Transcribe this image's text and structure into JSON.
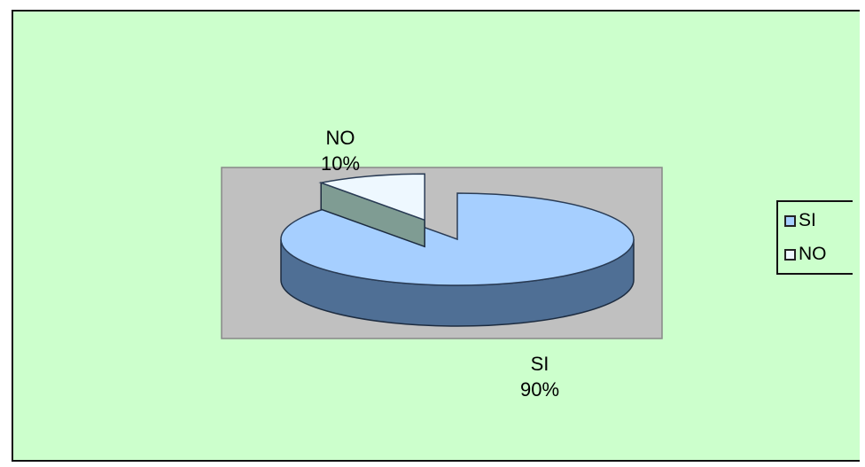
{
  "chart_data": {
    "type": "pie",
    "style": "3d-exploded",
    "categories": [
      "SI",
      "NO"
    ],
    "values": [
      90,
      10
    ],
    "data_labels": [
      {
        "name": "SI",
        "percent": "90%"
      },
      {
        "name": "NO",
        "percent": "10%"
      }
    ],
    "legend": {
      "position": "right",
      "entries": [
        "SI",
        "NO"
      ]
    },
    "colors": {
      "SI_top": "#a6cfff",
      "SI_side": "#4f6f95",
      "NO_top": "#eef8ff",
      "NO_side": "#7f9c93",
      "plot_area": "#c0c0c0",
      "background": "#ccffcc"
    }
  }
}
